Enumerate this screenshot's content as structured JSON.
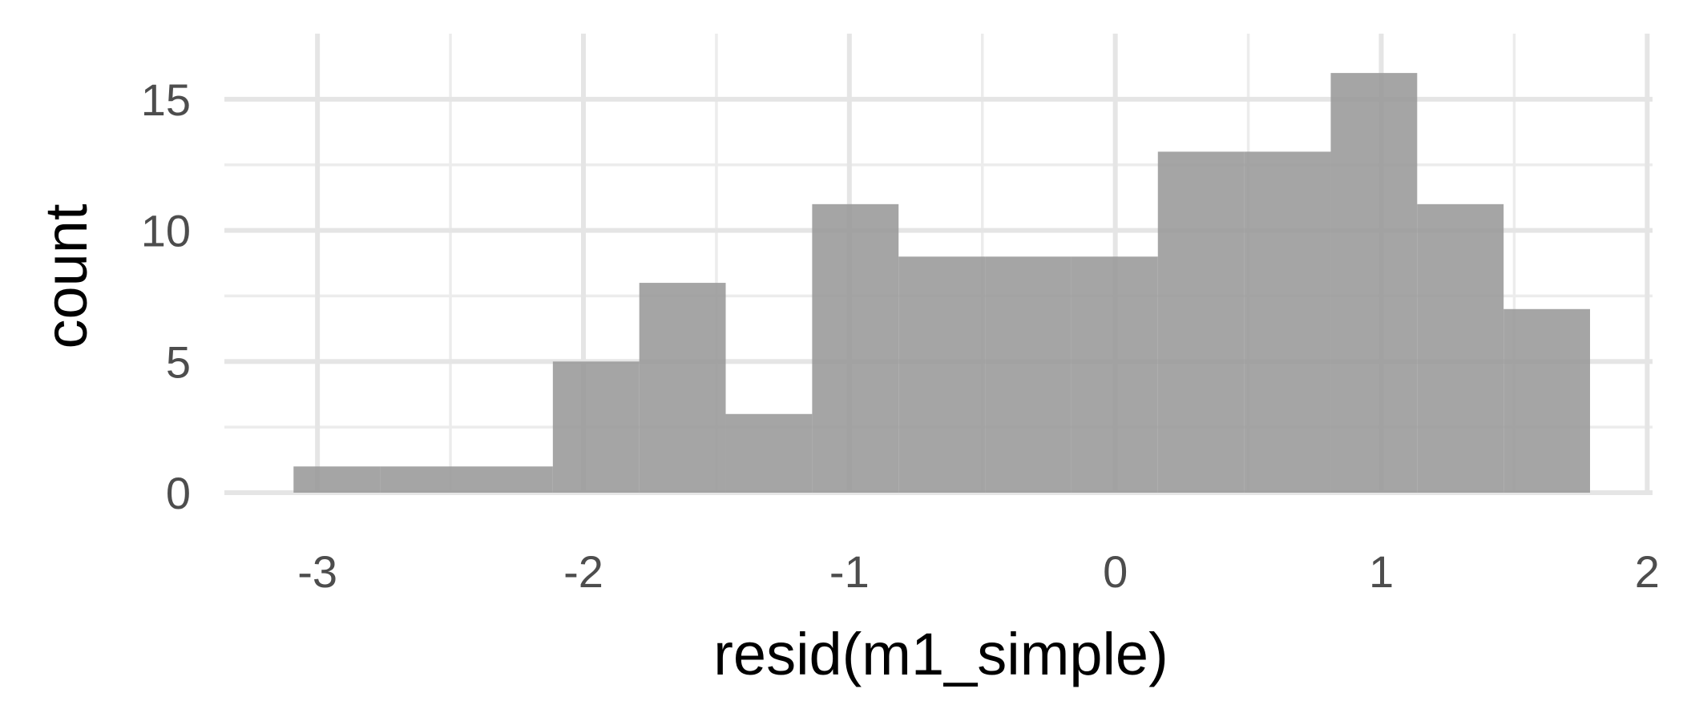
{
  "chart_data": {
    "type": "bar",
    "title": "",
    "xlabel": "resid(m1_simple)",
    "ylabel": "count",
    "xlim": [
      -3.35,
      2.02
    ],
    "ylim": [
      0,
      17.5
    ],
    "x_ticks": [
      -3,
      -2,
      -1,
      0,
      1,
      2
    ],
    "y_ticks": [
      0,
      5,
      10,
      15
    ],
    "grid": true,
    "bar_color": "#999999",
    "bins": [
      {
        "x0": -3.09,
        "x1": -2.765,
        "count": 1
      },
      {
        "x0": -2.765,
        "x1": -2.44,
        "count": 1
      },
      {
        "x0": -2.44,
        "x1": -2.115,
        "count": 1
      },
      {
        "x0": -2.115,
        "x1": -1.79,
        "count": 5
      },
      {
        "x0": -1.79,
        "x1": -1.465,
        "count": 8
      },
      {
        "x0": -1.465,
        "x1": -1.14,
        "count": 3
      },
      {
        "x0": -1.14,
        "x1": -0.815,
        "count": 11
      },
      {
        "x0": -0.815,
        "x1": -0.49,
        "count": 9
      },
      {
        "x0": -0.49,
        "x1": -0.165,
        "count": 9
      },
      {
        "x0": -0.165,
        "x1": 0.16,
        "count": 9
      },
      {
        "x0": 0.16,
        "x1": 0.485,
        "count": 13
      },
      {
        "x0": 0.485,
        "x1": 0.81,
        "count": 13
      },
      {
        "x0": 0.81,
        "x1": 1.135,
        "count": 16
      },
      {
        "x0": 1.135,
        "x1": 1.46,
        "count": 11
      },
      {
        "x0": 1.46,
        "x1": 1.785,
        "count": 7
      }
    ]
  }
}
